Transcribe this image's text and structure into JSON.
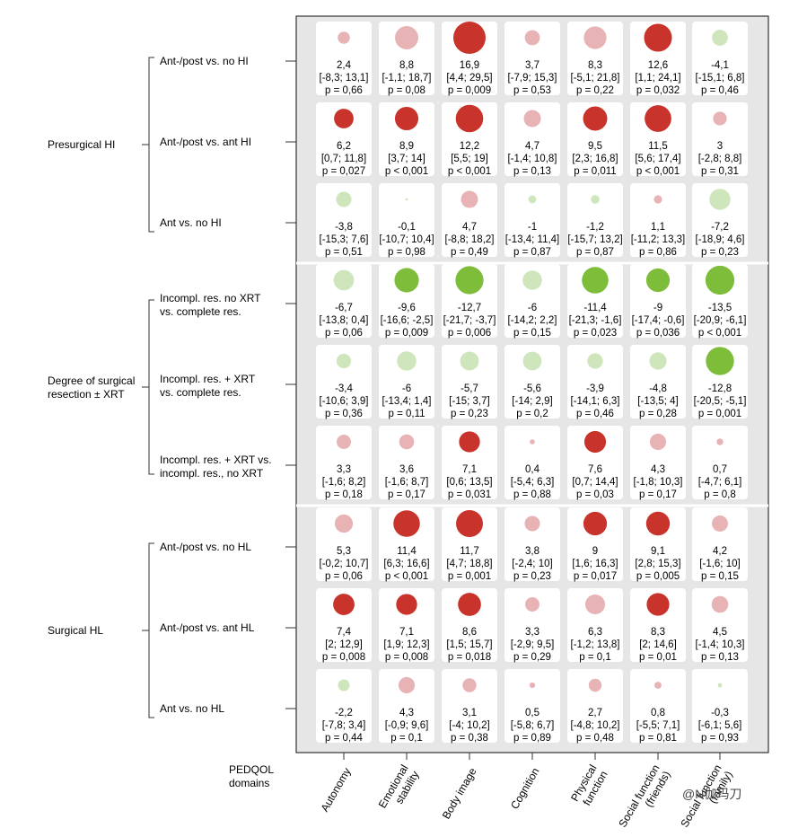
{
  "chart_data": {
    "type": "bubble-grid",
    "columns_title": "PEDQOL\ndomains",
    "columns": [
      "Autonomy",
      "Emotional stability",
      "Body image",
      "Cognition",
      "Physical function",
      "Social function (friends)",
      "Social function (family)"
    ],
    "groups": [
      {
        "label": "Presurgical HI",
        "rows": [
          0,
          1,
          2
        ]
      },
      {
        "label": "Degree of surgical\nresection ± XRT",
        "rows": [
          3,
          4,
          5
        ]
      },
      {
        "label": "Surgical HL",
        "rows": [
          6,
          7,
          8
        ]
      }
    ],
    "rows": [
      {
        "label": "Ant-/post vs. no HI",
        "cells": [
          {
            "v": 2.4,
            "est": "2,4",
            "ci": "[-8,3; 13,1]",
            "p": "p = 0,66",
            "pv": 0.66
          },
          {
            "v": 8.8,
            "est": "8,8",
            "ci": "[-1,1; 18,7]",
            "p": "p = 0,08",
            "pv": 0.08
          },
          {
            "v": 16.9,
            "est": "16,9",
            "ci": "[4,4; 29,5]",
            "p": "p = 0,009",
            "pv": 0.009
          },
          {
            "v": 3.7,
            "est": "3,7",
            "ci": "[-7,9; 15,3]",
            "p": "p = 0,53",
            "pv": 0.53
          },
          {
            "v": 8.3,
            "est": "8,3",
            "ci": "[-5,1; 21,8]",
            "p": "p = 0,22",
            "pv": 0.22
          },
          {
            "v": 12.6,
            "est": "12,6",
            "ci": "[1,1; 24,1]",
            "p": "p = 0,032",
            "pv": 0.032
          },
          {
            "v": -4.1,
            "est": "-4,1",
            "ci": "[-15,1; 6,8]",
            "p": "p = 0,46",
            "pv": 0.46
          }
        ]
      },
      {
        "label": "Ant-/post vs. ant HI",
        "cells": [
          {
            "v": 6.2,
            "est": "6,2",
            "ci": "[0,7; 11,8]",
            "p": "p = 0,027",
            "pv": 0.027
          },
          {
            "v": 8.9,
            "est": "8,9",
            "ci": "[3,7; 14]",
            "p": "p < 0,001",
            "pv": 0.001
          },
          {
            "v": 12.2,
            "est": "12,2",
            "ci": "[5,5; 19]",
            "p": "p < 0,001",
            "pv": 0.001
          },
          {
            "v": 4.7,
            "est": "4,7",
            "ci": "[-1,4; 10,8]",
            "p": "p = 0,13",
            "pv": 0.13
          },
          {
            "v": 9.5,
            "est": "9,5",
            "ci": "[2,3; 16,8]",
            "p": "p = 0,011",
            "pv": 0.011
          },
          {
            "v": 11.5,
            "est": "11,5",
            "ci": "[5,6; 17,4]",
            "p": "p < 0,001",
            "pv": 0.001
          },
          {
            "v": 3,
            "est": "3",
            "ci": "[-2,8; 8,8]",
            "p": "p = 0,31",
            "pv": 0.31
          }
        ]
      },
      {
        "label": "Ant vs. no HI",
        "cells": [
          {
            "v": -3.8,
            "est": "-3,8",
            "ci": "[-15,3; 7,6]",
            "p": "p = 0,51",
            "pv": 0.51
          },
          {
            "v": -0.1,
            "est": "-0,1",
            "ci": "[-10,7; 10,4]",
            "p": "p = 0,98",
            "pv": 0.98
          },
          {
            "v": 4.7,
            "est": "4,7",
            "ci": "[-8,8; 18,2]",
            "p": "p = 0,49",
            "pv": 0.49
          },
          {
            "v": -1,
            "est": "-1",
            "ci": "[-13,4; 11,4]",
            "p": "p = 0,87",
            "pv": 0.87
          },
          {
            "v": -1.2,
            "est": "-1,2",
            "ci": "[-15,7; 13,2]",
            "p": "p = 0,87",
            "pv": 0.87
          },
          {
            "v": 1.1,
            "est": "1,1",
            "ci": "[-11,2; 13,3]",
            "p": "p = 0,86",
            "pv": 0.86
          },
          {
            "v": -7.2,
            "est": "-7,2",
            "ci": "[-18,9; 4,6]",
            "p": "p = 0,23",
            "pv": 0.23
          }
        ]
      },
      {
        "label": "Incompl. res. no XRT\nvs. complete res.",
        "cells": [
          {
            "v": -6.7,
            "est": "-6,7",
            "ci": "[-13,8; 0,4]",
            "p": "p = 0,06",
            "pv": 0.06
          },
          {
            "v": -9.6,
            "est": "-9,6",
            "ci": "[-16,6; -2,5]",
            "p": "p = 0,009",
            "pv": 0.009
          },
          {
            "v": -12.7,
            "est": "-12,7",
            "ci": "[-21,7; -3,7]",
            "p": "p = 0,006",
            "pv": 0.006
          },
          {
            "v": -6,
            "est": "-6",
            "ci": "[-14,2; 2,2]",
            "p": "p = 0,15",
            "pv": 0.15
          },
          {
            "v": -11.4,
            "est": "-11,4",
            "ci": "[-21,3; -1,6]",
            "p": "p = 0,023",
            "pv": 0.023
          },
          {
            "v": -9,
            "est": "-9",
            "ci": "[-17,4; -0,6]",
            "p": "p = 0,036",
            "pv": 0.036
          },
          {
            "v": -13.5,
            "est": "-13,5",
            "ci": "[-20,9; -6,1]",
            "p": "p < 0,001",
            "pv": 0.001
          }
        ]
      },
      {
        "label": "Incompl. res. + XRT\nvs. complete res.",
        "cells": [
          {
            "v": -3.4,
            "est": "-3,4",
            "ci": "[-10,6; 3,9]",
            "p": "p = 0,36",
            "pv": 0.36
          },
          {
            "v": -6,
            "est": "-6",
            "ci": "[-13,4; 1,4]",
            "p": "p = 0,11",
            "pv": 0.11
          },
          {
            "v": -5.7,
            "est": "-5,7",
            "ci": "[-15; 3,7]",
            "p": "p = 0,23",
            "pv": 0.23
          },
          {
            "v": -5.6,
            "est": "-5,6",
            "ci": "[-14; 2,9]",
            "p": "p = 0,2",
            "pv": 0.2
          },
          {
            "v": -3.9,
            "est": "-3,9",
            "ci": "[-14,1; 6,3]",
            "p": "p = 0,46",
            "pv": 0.46
          },
          {
            "v": -4.8,
            "est": "-4,8",
            "ci": "[-13,5; 4]",
            "p": "p = 0,28",
            "pv": 0.28
          },
          {
            "v": -12.8,
            "est": "-12,8",
            "ci": "[-20,5; -5,1]",
            "p": "p = 0,001",
            "pv": 0.001
          }
        ]
      },
      {
        "label": "Incompl. res. + XRT vs.\nincompl. res., no XRT",
        "cells": [
          {
            "v": 3.3,
            "est": "3,3",
            "ci": "[-1,6; 8,2]",
            "p": "p = 0,18",
            "pv": 0.18
          },
          {
            "v": 3.6,
            "est": "3,6",
            "ci": "[-1,6; 8,7]",
            "p": "p = 0,17",
            "pv": 0.17
          },
          {
            "v": 7.1,
            "est": "7,1",
            "ci": "[0,6; 13,5]",
            "p": "p = 0,031",
            "pv": 0.031
          },
          {
            "v": 0.4,
            "est": "0,4",
            "ci": "[-5,4; 6,3]",
            "p": "p = 0,88",
            "pv": 0.88
          },
          {
            "v": 7.6,
            "est": "7,6",
            "ci": "[0,7; 14,4]",
            "p": "p = 0,03",
            "pv": 0.03
          },
          {
            "v": 4.3,
            "est": "4,3",
            "ci": "[-1,8; 10,3]",
            "p": "p = 0,17",
            "pv": 0.17
          },
          {
            "v": 0.7,
            "est": "0,7",
            "ci": "[-4,7; 6,1]",
            "p": "p = 0,8",
            "pv": 0.8
          }
        ]
      },
      {
        "label": "Ant-/post vs. no HL",
        "cells": [
          {
            "v": 5.3,
            "est": "5,3",
            "ci": "[-0,2; 10,7]",
            "p": "p = 0,06",
            "pv": 0.06
          },
          {
            "v": 11.4,
            "est": "11,4",
            "ci": "[6,3; 16,6]",
            "p": "p < 0,001",
            "pv": 0.001
          },
          {
            "v": 11.7,
            "est": "11,7",
            "ci": "[4,7; 18,8]",
            "p": "p = 0,001",
            "pv": 0.001
          },
          {
            "v": 3.8,
            "est": "3,8",
            "ci": "[-2,4; 10]",
            "p": "p = 0,23",
            "pv": 0.23
          },
          {
            "v": 9,
            "est": "9",
            "ci": "[1,6; 16,3]",
            "p": "p = 0,017",
            "pv": 0.017
          },
          {
            "v": 9.1,
            "est": "9,1",
            "ci": "[2,8; 15,3]",
            "p": "p = 0,005",
            "pv": 0.005
          },
          {
            "v": 4.2,
            "est": "4,2",
            "ci": "[-1,6; 10]",
            "p": "p = 0,15",
            "pv": 0.15
          }
        ]
      },
      {
        "label": "Ant-/post vs. ant HL",
        "cells": [
          {
            "v": 7.4,
            "est": "7,4",
            "ci": "[2; 12,9]",
            "p": "p = 0,008",
            "pv": 0.008
          },
          {
            "v": 7.1,
            "est": "7,1",
            "ci": "[1,9; 12,3]",
            "p": "p = 0,008",
            "pv": 0.008
          },
          {
            "v": 8.6,
            "est": "8,6",
            "ci": "[1,5; 15,7]",
            "p": "p = 0,018",
            "pv": 0.018
          },
          {
            "v": 3.3,
            "est": "3,3",
            "ci": "[-2,9; 9,5]",
            "p": "p = 0,29",
            "pv": 0.29
          },
          {
            "v": 6.3,
            "est": "6,3",
            "ci": "[-1,2; 13,8]",
            "p": "p = 0,1",
            "pv": 0.1
          },
          {
            "v": 8.3,
            "est": "8,3",
            "ci": "[2; 14,6]",
            "p": "p = 0,01",
            "pv": 0.01
          },
          {
            "v": 4.5,
            "est": "4,5",
            "ci": "[-1,4; 10,3]",
            "p": "p = 0,13",
            "pv": 0.13
          }
        ]
      },
      {
        "label": "Ant vs. no HL",
        "cells": [
          {
            "v": -2.2,
            "est": "-2,2",
            "ci": "[-7,8; 3,4]",
            "p": "p = 0,44",
            "pv": 0.44
          },
          {
            "v": 4.3,
            "est": "4,3",
            "ci": "[-0,9; 9,6]",
            "p": "p = 0,1",
            "pv": 0.1
          },
          {
            "v": 3.1,
            "est": "3,1",
            "ci": "[-4; 10,2]",
            "p": "p = 0,38",
            "pv": 0.38
          },
          {
            "v": 0.5,
            "est": "0,5",
            "ci": "[-5,8; 6,7]",
            "p": "p = 0,89",
            "pv": 0.89
          },
          {
            "v": 2.7,
            "est": "2,7",
            "ci": "[-4,8; 10,2]",
            "p": "p = 0,48",
            "pv": 0.48
          },
          {
            "v": 0.8,
            "est": "0,8",
            "ci": "[-5,5; 7,1]",
            "p": "p = 0,81",
            "pv": 0.81
          },
          {
            "v": -0.3,
            "est": "-0,3",
            "ci": "[-6,1; 5,6]",
            "p": "p = 0,93",
            "pv": 0.93
          }
        ]
      }
    ],
    "colors": {
      "pos_sig": "#c8342c",
      "pos_nonsig": "#e8b3b5",
      "neg_sig": "#7dbd3a",
      "neg_nonsig": "#cfe6bc",
      "panel_bg": "#e6e6e6",
      "cell_bg": "#ffffff"
    },
    "significance_threshold": 0.05
  },
  "watermark": "@N伽玛刀"
}
